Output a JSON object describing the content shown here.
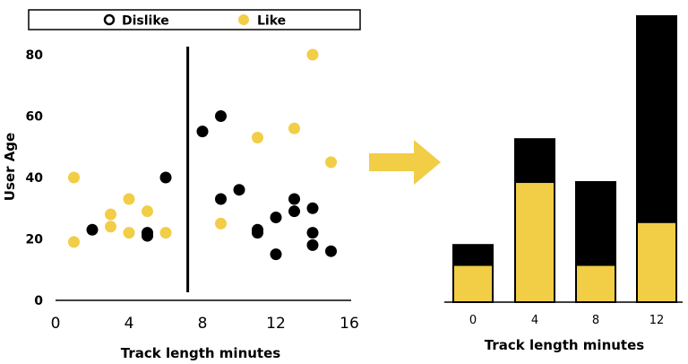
{
  "colors": {
    "like": "#F2CD46",
    "dislike": "#000000",
    "arrow": "#F2CD46",
    "axis": "#000000"
  },
  "legend": {
    "dislike": "Dislike",
    "like": "Like"
  },
  "chart_data": [
    {
      "type": "scatter",
      "xlabel": "Track length minutes",
      "ylabel": "User Age",
      "xlim": [
        0,
        16
      ],
      "ylim": [
        0,
        80
      ],
      "xticks": [
        "0",
        "4",
        "8",
        "12",
        "16"
      ],
      "yticks": [
        "0",
        "20",
        "40",
        "60",
        "80"
      ],
      "split_line_x": 7.2,
      "series": [
        {
          "name": "Dislike",
          "points": [
            [
              2,
              23
            ],
            [
              5,
              22
            ],
            [
              5,
              21
            ],
            [
              6,
              40
            ],
            [
              8,
              55
            ],
            [
              9,
              60
            ],
            [
              9,
              33
            ],
            [
              10,
              36
            ],
            [
              11,
              23
            ],
            [
              11,
              22
            ],
            [
              12,
              27
            ],
            [
              12,
              15
            ],
            [
              13,
              29
            ],
            [
              13,
              33
            ],
            [
              14,
              30
            ],
            [
              14,
              22
            ],
            [
              14,
              18
            ],
            [
              15,
              16
            ]
          ]
        },
        {
          "name": "Like",
          "points": [
            [
              1,
              40
            ],
            [
              1,
              19
            ],
            [
              3,
              28
            ],
            [
              3,
              24
            ],
            [
              4,
              33
            ],
            [
              4,
              22
            ],
            [
              5,
              29
            ],
            [
              6,
              22
            ],
            [
              9,
              25
            ],
            [
              11,
              53
            ],
            [
              13,
              56
            ],
            [
              14,
              80
            ],
            [
              15,
              45
            ]
          ]
        }
      ]
    },
    {
      "type": "bar",
      "stacked": true,
      "xlabel": "Track length minutes",
      "categories": [
        "0",
        "4",
        "8",
        "12"
      ],
      "ymax": 100,
      "series": [
        {
          "name": "Like",
          "values": [
            13,
            42,
            13,
            28
          ]
        },
        {
          "name": "Dislike",
          "values": [
            7,
            15,
            29,
            72
          ]
        }
      ]
    }
  ]
}
